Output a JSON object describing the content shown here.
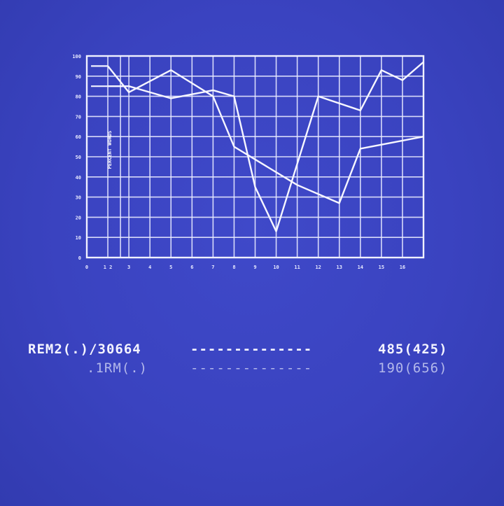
{
  "chart_data": {
    "type": "line",
    "ylabel": "PERCENT WORDS",
    "ylim": [
      0,
      100
    ],
    "yticks": [
      "0",
      "10",
      "20",
      "30",
      "40",
      "50",
      "60",
      "70",
      "80",
      "90",
      "100"
    ],
    "xticks": [
      "0",
      "1 2",
      "3",
      "4",
      "5",
      "6",
      "7",
      "8",
      "9",
      "10",
      "11",
      "12",
      "13",
      "14",
      "15",
      "16"
    ],
    "grid": true,
    "series": [
      {
        "x": [
          1,
          2,
          4,
          6,
          7,
          10,
          12,
          13,
          16
        ],
        "values": [
          95,
          82,
          93,
          80,
          55,
          36,
          27,
          54,
          60
        ]
      },
      {
        "x": [
          1,
          2,
          4,
          6,
          7,
          8,
          9,
          11,
          13,
          14,
          15,
          16
        ],
        "values": [
          85,
          85,
          79,
          83,
          80,
          35,
          13,
          80,
          73,
          93,
          88,
          97
        ]
      }
    ]
  },
  "legend": {
    "row1": {
      "label": "REM2(.)/30664",
      "dashes": "--------------",
      "value": "485(425)"
    },
    "row2": {
      "label": ".1RM(.)",
      "dashes": "--------------",
      "value": "190(656)"
    }
  }
}
